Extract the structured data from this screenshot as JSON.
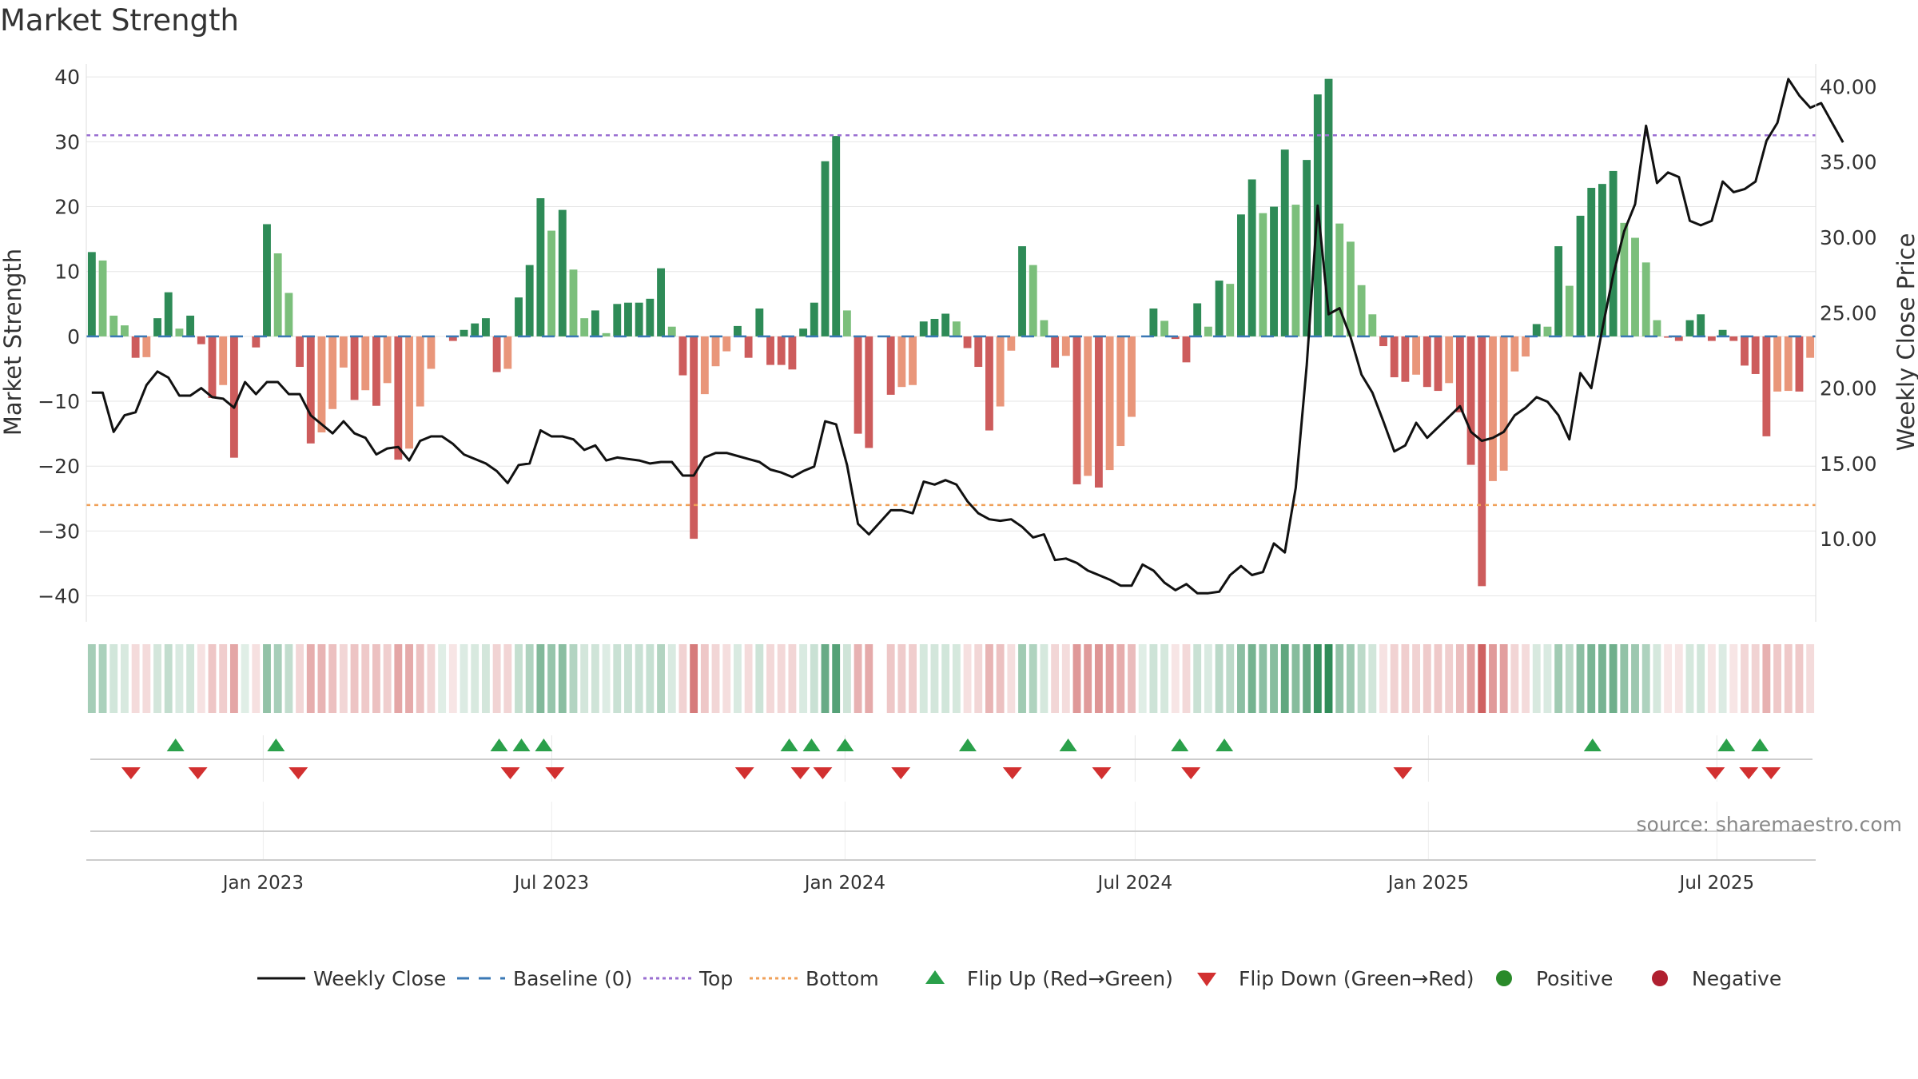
{
  "chart_data": {
    "type": "bar",
    "title": "Market Strength",
    "ylabel_left": "Market Strength",
    "ylabel_right": "Weekly Close Price",
    "ylim_left": [
      -44,
      42
    ],
    "ylim_right": [
      4.5,
      41.5
    ],
    "yticks_left": [
      "40",
      "30",
      "20",
      "10",
      "0",
      "−10",
      "−20",
      "−30",
      "−40"
    ],
    "yticks_left_values": [
      40,
      30,
      20,
      10,
      0,
      -10,
      -20,
      -30,
      -40
    ],
    "yticks_right": [
      "40.00",
      "35.00",
      "30.00",
      "25.00",
      "20.00",
      "15.00",
      "10.00"
    ],
    "yticks_right_values": [
      40,
      35,
      30,
      25,
      20,
      15,
      10
    ],
    "x_start": "2022-09-12",
    "x_end": "2025-09-01",
    "xticks": [
      "Jan 2023",
      "Jul 2023",
      "Jan 2024",
      "Jul 2024",
      "Jan 2025",
      "Jul 2025"
    ],
    "xticks_dates": [
      "2023-01-01",
      "2023-07-01",
      "2024-01-01",
      "2024-07-01",
      "2025-01-01",
      "2025-07-01"
    ],
    "top_threshold": 31,
    "bottom_threshold": -26,
    "baseline": 0,
    "strength": [
      13,
      11.7,
      3.2,
      1.7,
      -3.3,
      -3.2,
      2.8,
      6.8,
      1.2,
      3.2,
      -1.2,
      -9.5,
      -7.5,
      -18.7,
      0,
      -1.7,
      17.3,
      12.8,
      6.7,
      -4.7,
      -16.5,
      -14.8,
      -11.2,
      -4.8,
      -9.8,
      -8.3,
      -10.7,
      -7.2,
      -19,
      -17.3,
      -10.8,
      -5,
      0,
      -0.7,
      1,
      2,
      2.8,
      -5.5,
      -5,
      6,
      11,
      21.3,
      16.3,
      19.5,
      10.3,
      2.8,
      4,
      0.5,
      5,
      5.2,
      5.2,
      5.8,
      10.5,
      1.5,
      -6,
      -31.2,
      -8.9,
      -4.6,
      -2.3,
      1.6,
      -3.3,
      4.3,
      -4.4,
      -4.4,
      -5.1,
      1.2,
      5.2,
      27,
      30.9,
      4,
      -15,
      -17.2,
      0,
      -9,
      -7.8,
      -7.5,
      2.3,
      2.7,
      3.5,
      2.3,
      -1.8,
      -4.7,
      -14.5,
      -10.8,
      -2.2,
      13.9,
      11,
      2.5,
      -4.8,
      -3,
      -22.8,
      -21.5,
      -23.3,
      -20.6,
      -16.9,
      -12.4,
      0,
      4.3,
      2.4,
      -0.4,
      -4,
      5.1,
      1.5,
      8.6,
      8.1,
      18.8,
      24.2,
      19,
      20,
      28.8,
      20.3,
      27.2,
      37.3,
      39.7,
      17.4,
      14.6,
      7.9,
      3.4,
      -1.5,
      -6.3,
      -7,
      -5.9,
      -7.8,
      -8.4,
      -7.2,
      -11.7,
      -19.8,
      -38.5,
      -22.3,
      -20.7,
      -5.4,
      -3.1,
      1.9,
      1.5,
      13.9,
      7.8,
      18.6,
      22.9,
      23.5,
      25.5,
      17.5,
      15.2,
      11.4,
      2.5,
      -0.2,
      -0.7,
      2.5,
      3.4,
      -0.7,
      1,
      -0.7,
      -4.5,
      -5.8,
      -15.4,
      -8.5,
      -8.4,
      -8.5,
      -3.3
    ],
    "weekly_close": [
      19.7,
      19.7,
      17.1,
      18.2,
      18.4,
      20.2,
      21.1,
      20.7,
      19.5,
      19.5,
      20.0,
      19.4,
      19.3,
      18.7,
      20.4,
      19.6,
      20.4,
      20.4,
      19.6,
      19.6,
      18.2,
      17.6,
      17.0,
      17.8,
      17.0,
      16.7,
      15.6,
      16.0,
      16.1,
      15.2,
      16.5,
      16.8,
      16.8,
      16.3,
      15.6,
      15.3,
      15.0,
      14.5,
      13.7,
      14.9,
      15.0,
      17.2,
      16.8,
      16.8,
      16.6,
      15.9,
      16.2,
      15.2,
      15.4,
      15.3,
      15.2,
      15.0,
      15.1,
      15.1,
      14.2,
      14.2,
      15.4,
      15.7,
      15.7,
      15.5,
      15.3,
      15.1,
      14.6,
      14.4,
      14.1,
      14.5,
      14.8,
      17.8,
      17.6,
      14.9,
      11.0,
      10.3,
      11.1,
      11.9,
      11.9,
      11.7,
      13.8,
      13.6,
      13.9,
      13.6,
      12.5,
      11.7,
      11.3,
      11.2,
      11.3,
      10.8,
      10.1,
      10.3,
      8.6,
      8.7,
      8.4,
      7.9,
      7.6,
      7.3,
      6.9,
      6.9,
      8.3,
      7.9,
      7.1,
      6.6,
      7.0,
      6.4,
      6.4,
      6.5,
      7.6,
      8.2,
      7.6,
      7.8,
      9.7,
      9.1,
      13.4,
      21.5,
      32.1,
      24.9,
      25.3,
      23.4,
      20.9,
      19.7,
      17.8,
      15.8,
      16.2,
      17.7,
      16.7,
      17.4,
      18.1,
      18.8,
      17.1,
      16.5,
      16.7,
      17.1,
      18.2,
      18.7,
      19.4,
      19.1,
      18.2,
      16.6,
      21.0,
      20.0,
      23.9,
      27.5,
      30.4,
      32.2,
      37.4,
      33.6,
      34.3,
      34.0,
      31.1,
      30.8,
      31.1,
      33.7,
      33.0,
      33.2,
      33.7,
      36.4,
      37.6,
      40.5,
      39.4,
      38.6,
      38.9,
      37.6,
      36.3
    ],
    "flip_up_dates": [
      "2022-11-07",
      "2023-01-09",
      "2023-05-29",
      "2023-06-12",
      "2023-06-26",
      "2023-11-27",
      "2023-12-11",
      "2024-01-01",
      "2024-03-18",
      "2024-05-20",
      "2024-07-29",
      "2024-08-26",
      "2025-04-14",
      "2025-07-07",
      "2025-07-28"
    ],
    "flip_down_dates": [
      "2022-10-10",
      "2022-11-21",
      "2023-01-23",
      "2023-06-05",
      "2023-07-03",
      "2023-10-30",
      "2023-12-04",
      "2023-12-18",
      "2024-02-05",
      "2024-04-15",
      "2024-06-10",
      "2024-08-05",
      "2024-12-16",
      "2025-06-30",
      "2025-07-21",
      "2025-08-04"
    ],
    "legend": [
      {
        "label": "Weekly Close",
        "kind": "line",
        "color": "#111111"
      },
      {
        "label": "Baseline (0)",
        "kind": "dash",
        "color": "#3a78b5"
      },
      {
        "label": "Top",
        "kind": "dot",
        "color": "#9a6fd1"
      },
      {
        "label": "Bottom",
        "kind": "dot",
        "color": "#f0a058"
      },
      {
        "label": "Flip Up (Red→Green)",
        "kind": "tri-up",
        "color": "#2aa04a"
      },
      {
        "label": "Flip Down (Green→Red)",
        "kind": "tri-down",
        "color": "#d23030"
      },
      {
        "label": "Positive",
        "kind": "circle",
        "color": "#2a8a2a"
      },
      {
        "label": "Negative",
        "kind": "circle",
        "color": "#b02030"
      }
    ],
    "legend_position": "bottom-center",
    "source": "source: sharemaestro.com",
    "colors": {
      "green_strong": "#2e8b57",
      "green_light": "#7bbf7b",
      "red_strong": "#cd5c5c",
      "red_light": "#e9967a",
      "close_line": "#111111",
      "baseline": "#3a78b5",
      "top": "#9a6fd1",
      "bottom": "#f0a058",
      "flip_up": "#2aa04a",
      "flip_down": "#d23030",
      "grid": "#e6e6e6"
    }
  }
}
